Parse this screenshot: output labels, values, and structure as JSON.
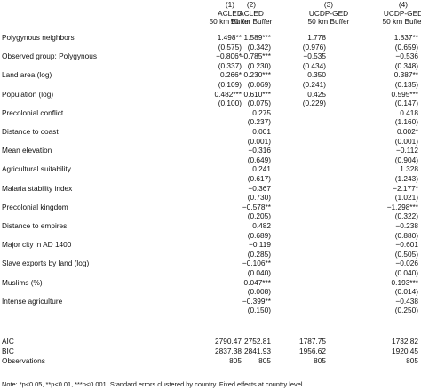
{
  "columns": [
    {
      "num": "(1)",
      "source": "ACLED",
      "buffer": "50 km Buffer"
    },
    {
      "num": "(2)",
      "source": "ACLED",
      "buffer": "50 km Buffer"
    },
    {
      "num": "(3)",
      "source": "UCDP-GED",
      "buffer": "50 km Buffer"
    },
    {
      "num": "(4)",
      "source": "UCDP-GED",
      "buffer": "50 km Buffer"
    }
  ],
  "rows": [
    {
      "label": "Polygynous neighbors",
      "v": [
        "1.498**",
        "1.589***",
        "1.778",
        "1.837**"
      ]
    },
    {
      "label": "",
      "v": [
        "(0.575)",
        "(0.342)",
        "(0.976)",
        "(0.659)"
      ]
    },
    {
      "label": "Observed group: Polygynous",
      "v": [
        "−0.806*",
        "−0.785***",
        "−0.535",
        "−0.536"
      ]
    },
    {
      "label": "",
      "v": [
        "(0.337)",
        "(0.230)",
        "(0.434)",
        "(0.348)"
      ]
    },
    {
      "label": "Land area (log)",
      "v": [
        "0.266*",
        "0.230***",
        "0.350",
        "0.387**"
      ]
    },
    {
      "label": "",
      "v": [
        "(0.109)",
        "(0.069)",
        "(0.241)",
        "(0.135)"
      ]
    },
    {
      "label": "Population (log)",
      "v": [
        "0.482***",
        "0.610***",
        "0.425",
        "0.595***"
      ]
    },
    {
      "label": "",
      "v": [
        "(0.100)",
        "(0.075)",
        "(0.229)",
        "(0.147)"
      ]
    },
    {
      "label": "Precolonial conflict",
      "v": [
        "",
        "0.275",
        "",
        "0.418"
      ]
    },
    {
      "label": "",
      "v": [
        "",
        "(0.237)",
        "",
        "(1.160)"
      ]
    },
    {
      "label": "Distance to coast",
      "v": [
        "",
        "0.001",
        "",
        "0.002*"
      ]
    },
    {
      "label": "",
      "v": [
        "",
        "(0.001)",
        "",
        "(0.001)"
      ]
    },
    {
      "label": "Mean elevation",
      "v": [
        "",
        "−0.316",
        "",
        "−0.112"
      ]
    },
    {
      "label": "",
      "v": [
        "",
        "(0.649)",
        "",
        "(0.904)"
      ]
    },
    {
      "label": "Agricultural suitability",
      "v": [
        "",
        "0.241",
        "",
        "1.328"
      ]
    },
    {
      "label": "",
      "v": [
        "",
        "(0.617)",
        "",
        "(1.243)"
      ]
    },
    {
      "label": "Malaria stability index",
      "v": [
        "",
        "−0.367",
        "",
        "−2.177*"
      ]
    },
    {
      "label": "",
      "v": [
        "",
        "(0.730)",
        "",
        "(1.021)"
      ]
    },
    {
      "label": "Precolonial kingdom",
      "v": [
        "",
        "−0.578**",
        "",
        "−1.298***"
      ]
    },
    {
      "label": "",
      "v": [
        "",
        "(0.205)",
        "",
        "(0.322)"
      ]
    },
    {
      "label": "Distance to empires",
      "v": [
        "",
        "0.482",
        "",
        "−0.238"
      ]
    },
    {
      "label": "",
      "v": [
        "",
        "(0.689)",
        "",
        "(0.880)"
      ]
    },
    {
      "label": "Major city in AD 1400",
      "v": [
        "",
        "−0.119",
        "",
        "−0.601"
      ]
    },
    {
      "label": "",
      "v": [
        "",
        "(0.285)",
        "",
        "(0.505)"
      ]
    },
    {
      "label": "Slave exports by land (log)",
      "v": [
        "",
        "−0.106**",
        "",
        "−0.026"
      ]
    },
    {
      "label": "",
      "v": [
        "",
        "(0.040)",
        "",
        "(0.040)"
      ]
    },
    {
      "label": "Muslims (%)",
      "v": [
        "",
        "0.047***",
        "",
        "0.193***"
      ]
    },
    {
      "label": "",
      "v": [
        "",
        "(0.008)",
        "",
        "(0.014)"
      ]
    },
    {
      "label": "Intense agriculture",
      "v": [
        "",
        "−0.399**",
        "",
        "−0.438"
      ]
    },
    {
      "label": "",
      "v": [
        "",
        "(0.150)",
        "",
        "(0.250)"
      ]
    }
  ],
  "stats": [
    {
      "label": "AIC",
      "v": [
        "2790.47",
        "2752.81",
        "1787.75",
        "1732.82"
      ]
    },
    {
      "label": "BIC",
      "v": [
        "2837.38",
        "2841.93",
        "1956.62",
        "1920.45"
      ]
    },
    {
      "label": "Observations",
      "v": [
        "805",
        "805",
        "805",
        "805"
      ]
    }
  ],
  "note": "Note: *p<0.05, **p<0.01, ***p<0.001. Standard errors clustered by country. Fixed effects at country level."
}
